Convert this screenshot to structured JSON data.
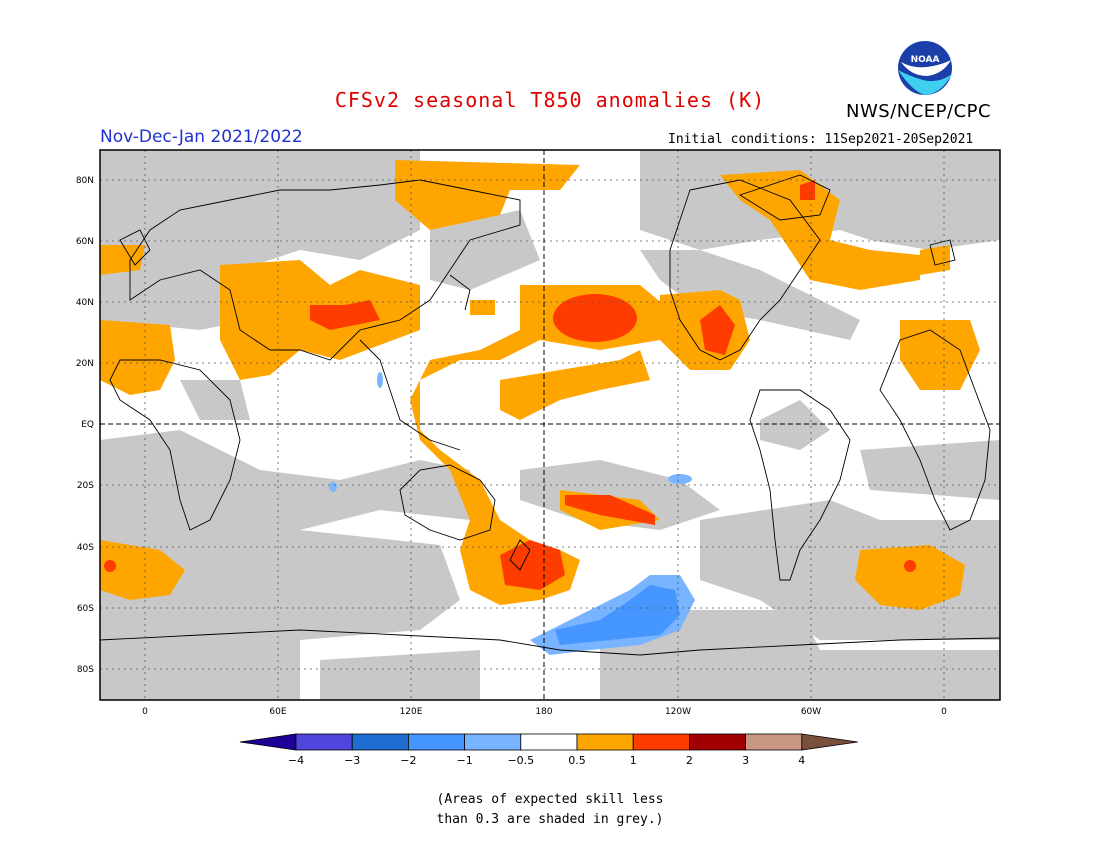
{
  "title": "CFSv2 seasonal T850 anomalies (K)",
  "org": "NWS/NCEP/CPC",
  "logo_text": "NOAA",
  "period": "Nov-Dec-Jan 2021/2022",
  "initial_conditions": "Initial conditions: 11Sep2021-20Sep2021",
  "map": {
    "lat_labels": [
      "80N",
      "60N",
      "40N",
      "20N",
      "EQ",
      "20S",
      "40S",
      "60S",
      "80S"
    ],
    "lon_labels": [
      "0",
      "60E",
      "120E",
      "180",
      "120W",
      "60W",
      "0"
    ],
    "colors": {
      "grey_skill": "#c8c8c8",
      "orange": "#ffa500",
      "red_orange": "#ff3c00",
      "blue_light": "#78b4ff",
      "blue": "#4696ff"
    }
  },
  "colorbar": {
    "labels": [
      "-4",
      "-3",
      "-2",
      "-1",
      "-0.5",
      "0.5",
      "1",
      "2",
      "3",
      "4"
    ],
    "colors": [
      "#1e0096",
      "#5046dc",
      "#1e6ed2",
      "#4696ff",
      "#78b4ff",
      "#ffffff",
      "#ffa500",
      "#ff3c00",
      "#a00000",
      "#c89682",
      "#78503c"
    ]
  },
  "note_line1": "(Areas of expected skill less",
  "note_line2": "than 0.3 are shaded in grey.)"
}
